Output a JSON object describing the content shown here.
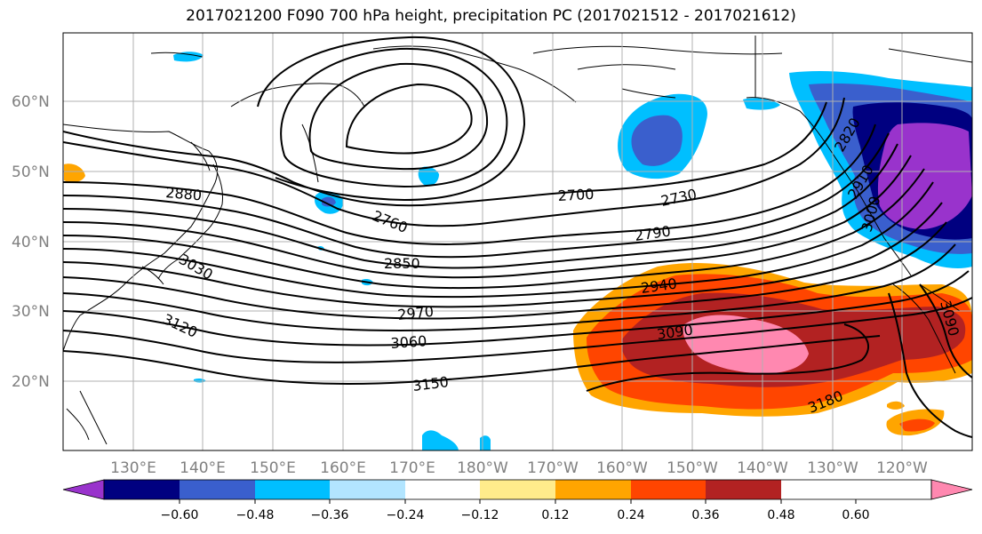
{
  "title": "2017021200 F090 700 hPa height, precipitation PC (2017021512 - 2017021612)",
  "lat_labels": [
    "60°N",
    "50°N",
    "40°N",
    "30°N",
    "20°N"
  ],
  "lon_labels": [
    "130°E",
    "140°E",
    "150°E",
    "160°E",
    "170°E",
    "180°W",
    "170°W",
    "160°W",
    "150°W",
    "140°W",
    "130°W",
    "120°W"
  ],
  "contour_labels": [
    "2880",
    "2760",
    "2850",
    "2970",
    "3060",
    "3150",
    "3120",
    "3030",
    "2700",
    "2730",
    "2790",
    "2940",
    "3090",
    "3180",
    "2820",
    "2910",
    "3000",
    "3090"
  ],
  "colorbar": {
    "colors": [
      "#9933cc",
      "#000080",
      "#3a5fcd",
      "#00bfff",
      "#b2e5ff",
      "#ffffff",
      "#ffec8b",
      "#ffa500",
      "#ff4500",
      "#b22222",
      "#ff88b0"
    ],
    "tick_labels": [
      "−0.60",
      "−0.48",
      "−0.36",
      "−0.24",
      "−0.12",
      "0.12",
      "0.24",
      "0.36",
      "0.48",
      "0.60"
    ]
  },
  "colors": {
    "land_outline": "#000000",
    "grid": "#b0b0b0",
    "contour": "#000000",
    "axis_label": "#808080"
  }
}
